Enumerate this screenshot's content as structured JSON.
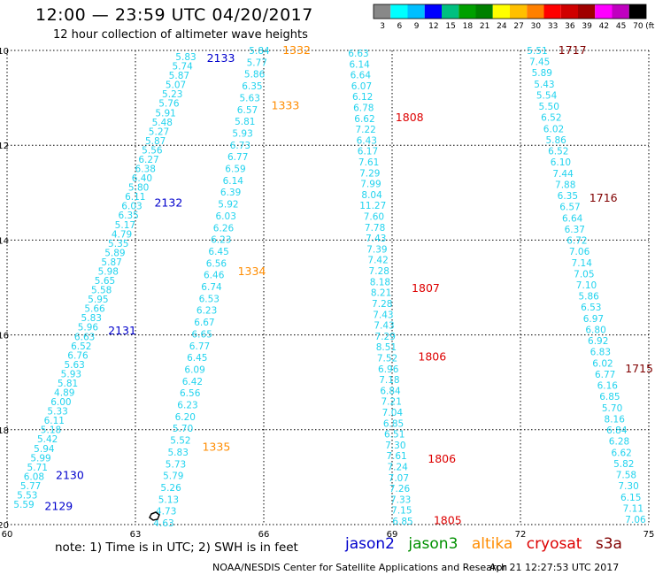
{
  "header": {
    "title": "12:00 — 23:59 UTC 04/20/2017",
    "subtitle": "12 hour collection of altimeter wave heights"
  },
  "color_scale": {
    "labels": [
      "3",
      "6",
      "9",
      "12",
      "15",
      "18",
      "21",
      "24",
      "27",
      "30",
      "33",
      "36",
      "39",
      "42",
      "45",
      "70",
      "(ft)"
    ],
    "colors": [
      "#888888",
      "#00ffff",
      "#00bfff",
      "#0000ff",
      "#00c080",
      "#00a000",
      "#008000",
      "#ffff00",
      "#ffc000",
      "#ff8000",
      "#ff0000",
      "#d00000",
      "#a00000",
      "#ff00ff",
      "#c000c0",
      "#000000"
    ]
  },
  "map": {
    "lon_ticks": [
      "60",
      "63",
      "66",
      "69",
      "72",
      "75"
    ],
    "lat_ticks": [
      "-10",
      "-12",
      "-14",
      "-16",
      "-18",
      "-20"
    ]
  },
  "satellites": [
    {
      "name": "jason2",
      "color": "#0000cc"
    },
    {
      "name": "jason3",
      "color": "#009000"
    },
    {
      "name": "altika",
      "color": "#ff8c00"
    },
    {
      "name": "cryosat",
      "color": "#dd0000"
    },
    {
      "name": "s3a",
      "color": "#800000"
    }
  ],
  "tracks": [
    {
      "id": "track-a",
      "values": [
        "5.83",
        "5.74",
        "5.87",
        "5.07",
        "5.23",
        "5.76",
        "5.91",
        "5.48",
        "5.27",
        "5.87",
        "5.56",
        "6.27",
        "6.38",
        "6.40",
        "5.80",
        "6.11",
        "6.03",
        "6.35",
        "5.17",
        "4.79",
        "5.35",
        "5.89",
        "5.87",
        "5.98",
        "5.65",
        "5.58",
        "5.95",
        "5.66",
        "5.83",
        "5.96",
        "6.63",
        "6.52",
        "6.76",
        "5.63",
        "5.93",
        "5.81",
        "4.89",
        "6.00",
        "5.33",
        "6.11",
        "5.18",
        "5.42",
        "5.94",
        "5.99",
        "5.71",
        "6.08",
        "5.77",
        "5.53",
        "5.59"
      ],
      "times": [
        {
          "text": "2133",
          "color": "#0000cc",
          "lat": -10.15
        },
        {
          "text": "2132",
          "color": "#0000cc",
          "lat": -13.2
        },
        {
          "text": "2131",
          "color": "#0000cc",
          "lat": -15.9
        },
        {
          "text": "2130",
          "color": "#0000cc",
          "lat": -18.95
        },
        {
          "text": "2129",
          "color": "#0000cc",
          "lat": -19.6
        }
      ]
    },
    {
      "id": "track-b",
      "values": [
        "5.84",
        "5.77",
        "5.86",
        "6.35",
        "5.63",
        "6.57",
        "5.81",
        "5.93",
        "6.73",
        "6.77",
        "6.59",
        "6.14",
        "6.39",
        "5.92",
        "6.03",
        "6.26",
        "6.23",
        "6.45",
        "6.56",
        "6.46",
        "6.74",
        "6.53",
        "6.23",
        "6.67",
        "6.65",
        "6.77",
        "6.45",
        "6.09",
        "6.42",
        "6.56",
        "6.23",
        "6.20",
        "5.70",
        "5.52",
        "5.83",
        "5.73",
        "5.79",
        "5.26",
        "5.13",
        "4.73",
        "4.63"
      ],
      "times": [
        {
          "text": "1332",
          "color": "#ff8c00",
          "lat": -9.98
        },
        {
          "text": "1333",
          "color": "#ff8c00",
          "lat": -11.15
        },
        {
          "text": "1334",
          "color": "#ff8c00",
          "lat": -14.65
        },
        {
          "text": "1335",
          "color": "#ff8c00",
          "lat": -18.35
        }
      ]
    },
    {
      "id": "track-c",
      "values": [
        "6.63",
        "6.14",
        "6.64",
        "6.07",
        "6.12",
        "6.78",
        "6.62",
        "7.22",
        "6.43",
        "6.17",
        "7.61",
        "7.29",
        "7.99",
        "8.04",
        "11.27",
        "7.60",
        "7.78",
        "7.43",
        "7.39",
        "7.42",
        "7.28",
        "8.18",
        "8.21",
        "7.28",
        "7.43",
        "7.43",
        "7.29",
        "8.51",
        "7.52",
        "6.96",
        "7.18",
        "6.84",
        "7.21",
        "7.04",
        "6.85",
        "6.51",
        "7.30",
        "7.61",
        "7.24",
        "7.07",
        "7.26",
        "7.33",
        "7.15",
        "6.85"
      ],
      "times": [
        {
          "text": "1808",
          "color": "#dd0000",
          "lat": -11.4
        },
        {
          "text": "1807",
          "color": "#dd0000",
          "lat": -15.0
        },
        {
          "text": "1806",
          "color": "#dd0000",
          "lat": -16.45
        },
        {
          "text": "1806",
          "color": "#dd0000",
          "lat": -18.6
        },
        {
          "text": "1805",
          "color": "#dd0000",
          "lat": -19.9
        }
      ]
    },
    {
      "id": "track-d",
      "values": [
        "5.51",
        "7.45",
        "5.89",
        "5.43",
        "5.54",
        "5.50",
        "6.52",
        "6.02",
        "5.86",
        "6.52",
        "6.10",
        "7.44",
        "7.88",
        "6.35",
        "6.57",
        "6.64",
        "6.37",
        "6.72",
        "7.06",
        "7.14",
        "7.05",
        "7.10",
        "5.86",
        "6.53",
        "6.97",
        "6.80",
        "6.92",
        "6.83",
        "6.02",
        "6.77",
        "6.16",
        "6.85",
        "5.70",
        "8.16",
        "6.84",
        "6.28",
        "6.62",
        "5.82",
        "7.58",
        "7.30",
        "6.15",
        "7.11",
        "7.06"
      ],
      "times": [
        {
          "text": "1717",
          "color": "#800000",
          "lat": -9.98
        },
        {
          "text": "1716",
          "color": "#800000",
          "lat": -13.1
        },
        {
          "text": "1715",
          "color": "#800000",
          "lat": -16.7
        }
      ]
    }
  ],
  "note": "note:  1) Time is in UTC;  2) SWH is in feet",
  "footer": {
    "org": "NOAA/NESDIS Center for Satellite Applications and Research",
    "date": "Apr 21 12:27:53 UTC 2017"
  }
}
